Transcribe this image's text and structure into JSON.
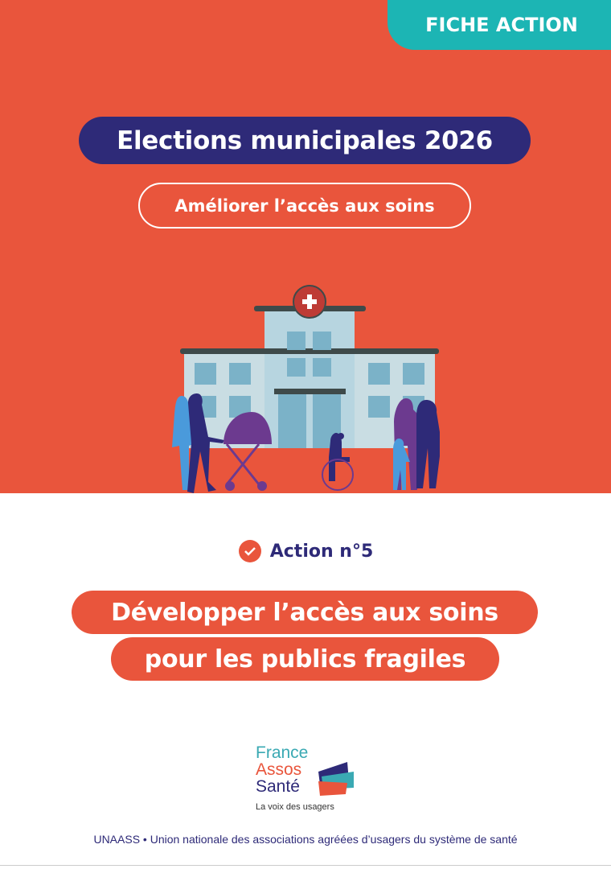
{
  "header": {
    "tab_label": "FICHE ACTION"
  },
  "cover": {
    "title": "Elections municipales 2026",
    "subtitle": "Améliorer l’accès aux soins"
  },
  "action": {
    "icon": "check-badge-icon",
    "label": "Action n°5",
    "title_line1": "Développer l’accès aux soins",
    "title_line2": "pour les publics fragiles"
  },
  "logo": {
    "line1": "France",
    "line2": "Assos",
    "line3": "Santé",
    "tagline": "La voix des usagers"
  },
  "footer": {
    "text": "UNAASS • Union nationale des associations agréées d’usagers du système de santé"
  },
  "colors": {
    "primary": "#E9553C",
    "navy": "#2E2A78",
    "teal": "#1CB5B4"
  }
}
